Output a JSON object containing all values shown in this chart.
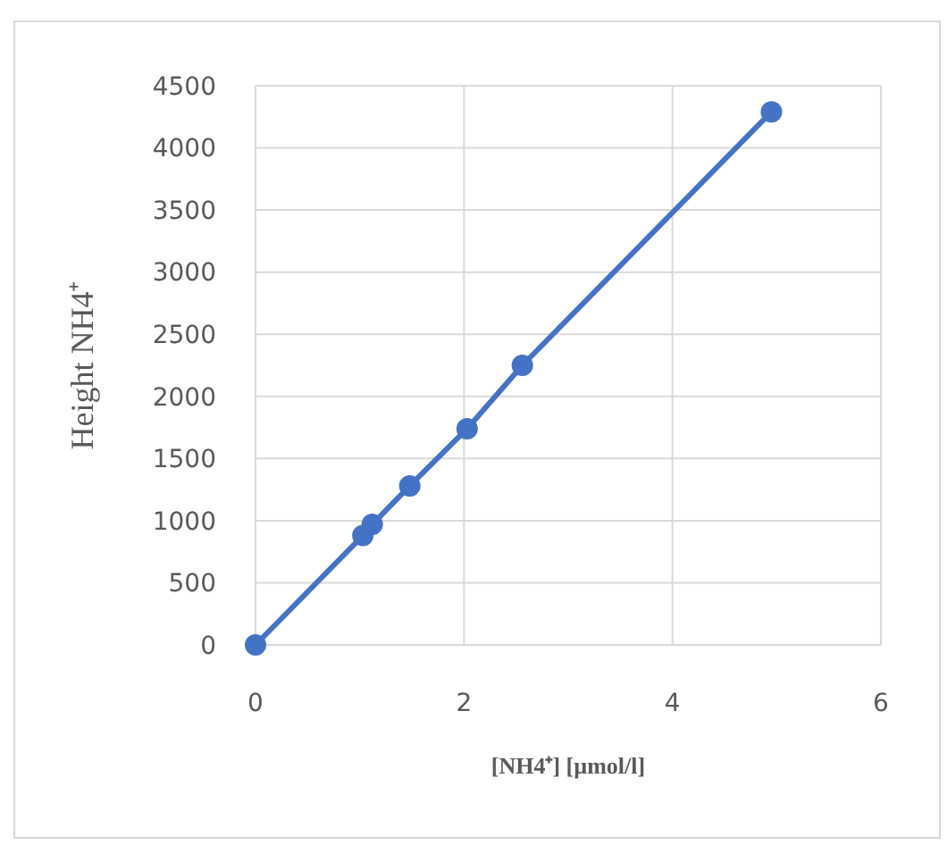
{
  "chart_data": {
    "type": "line",
    "xlabel": "[NH4⁺] [µmol/l]",
    "ylabel": "Height NH4⁺",
    "x": [
      0,
      1.03,
      1.12,
      1.48,
      2.03,
      2.56,
      4.95
    ],
    "series": [
      {
        "color": "#4472c4",
        "values": [
          0,
          880,
          970,
          1280,
          1740,
          2250,
          4290
        ]
      }
    ],
    "xlim": [
      0,
      6
    ],
    "xticks": [
      0,
      2,
      4,
      6
    ],
    "ylim": [
      0,
      4500
    ],
    "yticks": [
      0,
      500,
      1000,
      1500,
      2000,
      2500,
      3000,
      3500,
      4000,
      4500
    ],
    "grid": true,
    "marker": "circle",
    "line_style": "solid"
  }
}
